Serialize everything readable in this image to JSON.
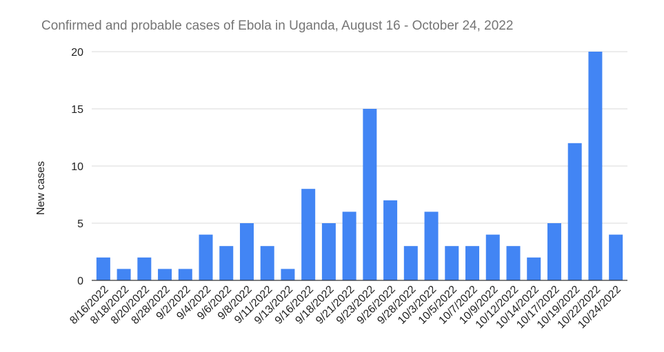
{
  "chart_data": {
    "type": "bar",
    "title": "Confirmed and probable cases of Ebola in Uganda, August 16 - October 24, 2022",
    "xlabel": "",
    "ylabel": "New cases",
    "ylim": [
      0,
      20
    ],
    "yticks": [
      "0",
      "5",
      "10",
      "15",
      "20"
    ],
    "grid": true,
    "bar_color": "#4285f4",
    "categories": [
      "8/16/2022",
      "8/18/2022",
      "8/20/2022",
      "8/28/2022",
      "9/2/2022",
      "9/4/2022",
      "9/6/2022",
      "9/8/2022",
      "9/11/2022",
      "9/13/2022",
      "9/16/2022",
      "9/18/2022",
      "9/21/2022",
      "9/23/2022",
      "9/26/2022",
      "9/28/2022",
      "10/3/2022",
      "10/5/2022",
      "10/7/2022",
      "10/9/2022",
      "10/12/2022",
      "10/14/2022",
      "10/17/2022",
      "10/19/2022",
      "10/22/2022",
      "10/24/2022"
    ],
    "values": [
      2,
      1,
      2,
      1,
      1,
      4,
      3,
      5,
      3,
      1,
      8,
      5,
      6,
      15,
      7,
      3,
      6,
      3,
      3,
      4,
      3,
      2,
      5,
      12,
      20,
      4
    ]
  }
}
